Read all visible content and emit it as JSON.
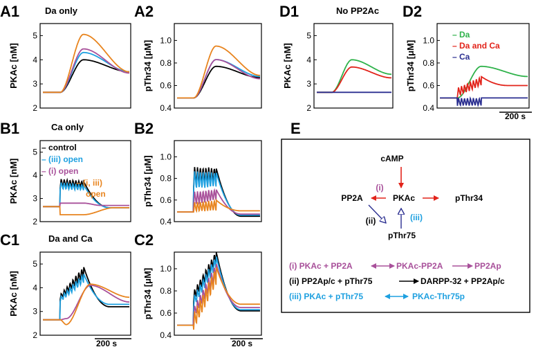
{
  "colors": {
    "black": "#000000",
    "blue": "#1ea0e0",
    "purple": "#a8509a",
    "orange": "#e8841e",
    "green": "#2eb24a",
    "red": "#e2231a",
    "navy": "#2a2e90"
  },
  "chart_data": [
    {
      "panel": "A1",
      "type": "line",
      "title": "Da only",
      "ylabel": "PKAc [nM]",
      "yticks": [
        "2",
        "3",
        "4",
        "5"
      ],
      "ylim": [
        2,
        5.5
      ],
      "series": [
        {
          "name": "control",
          "color": "#000000",
          "profile": "rise",
          "base": 2.65,
          "peak": 4.0,
          "end": 3.5
        },
        {
          "name": "(iii) open",
          "color": "#1ea0e0",
          "profile": "rise",
          "base": 2.65,
          "peak": 4.3,
          "end": 3.5
        },
        {
          "name": "(i) open",
          "color": "#a8509a",
          "profile": "rise",
          "base": 2.65,
          "peak": 4.45,
          "end": 3.45
        },
        {
          "name": "(i, iii) open",
          "color": "#e8841e",
          "profile": "rise",
          "base": 2.65,
          "peak": 5.05,
          "end": 3.5
        }
      ]
    },
    {
      "panel": "A2",
      "type": "line",
      "title": "",
      "ylabel": "pThr34 [μM]",
      "yticks": [
        "0.4",
        "0.6",
        "0.8",
        "1.0"
      ],
      "ylim": [
        0.4,
        1.15
      ],
      "series": [
        {
          "name": "control",
          "color": "#000000",
          "profile": "rise",
          "base": 0.49,
          "peak": 0.77,
          "end": 0.67
        },
        {
          "name": "(iii) open",
          "color": "#1ea0e0",
          "profile": "rise",
          "base": 0.49,
          "peak": 0.83,
          "end": 0.68
        },
        {
          "name": "(i) open",
          "color": "#a8509a",
          "profile": "rise",
          "base": 0.49,
          "peak": 0.83,
          "end": 0.66
        },
        {
          "name": "(i, iii) open",
          "color": "#e8841e",
          "profile": "rise",
          "base": 0.49,
          "peak": 0.95,
          "end": 0.69
        }
      ]
    },
    {
      "panel": "B1",
      "type": "line",
      "title": "Ca only",
      "ylabel": "PKAc [nM]",
      "yticks": [
        "2",
        "3",
        "4",
        "5"
      ],
      "ylim": [
        2,
        5.5
      ],
      "legend": [
        "control",
        "(iii) open",
        "(i) open",
        "(i, iii) open"
      ],
      "series": [
        {
          "name": "control",
          "color": "#000000",
          "profile": "osc",
          "base": 2.65,
          "low": 3.45,
          "high": 3.85,
          "endlow": 3.5,
          "endhigh": 3.75,
          "end": 2.6
        },
        {
          "name": "(iii) open",
          "color": "#1ea0e0",
          "profile": "osc",
          "base": 2.65,
          "low": 3.4,
          "high": 3.7,
          "endlow": 3.35,
          "endhigh": 3.6,
          "end": 2.6
        },
        {
          "name": "(i) open",
          "color": "#a8509a",
          "profile": "step",
          "base": 2.65,
          "level": 2.8,
          "end": 2.7
        },
        {
          "name": "(i, iii) open",
          "color": "#e8841e",
          "profile": "dip",
          "base": 2.65,
          "level": 2.3,
          "end": 2.6
        }
      ]
    },
    {
      "panel": "B2",
      "type": "line",
      "title": "",
      "ylabel": "pThr34 [μM]",
      "yticks": [
        "0.4",
        "0.6",
        "0.8",
        "1.0"
      ],
      "ylim": [
        0.4,
        1.15
      ],
      "series": [
        {
          "name": "control",
          "color": "#000000",
          "profile": "osc",
          "base": 0.49,
          "low": 0.72,
          "high": 0.91,
          "endlow": 0.76,
          "endhigh": 0.9,
          "end": 0.45
        },
        {
          "name": "(iii) open",
          "color": "#1ea0e0",
          "profile": "osc",
          "base": 0.49,
          "low": 0.7,
          "high": 0.87,
          "endlow": 0.72,
          "endhigh": 0.86,
          "end": 0.46
        },
        {
          "name": "(i) open",
          "color": "#a8509a",
          "profile": "osc",
          "base": 0.49,
          "low": 0.55,
          "high": 0.68,
          "endlow": 0.6,
          "endhigh": 0.7,
          "end": 0.47
        },
        {
          "name": "(i, iii) open",
          "color": "#e8841e",
          "profile": "osc",
          "base": 0.49,
          "low": 0.49,
          "high": 0.58,
          "endlow": 0.5,
          "endhigh": 0.6,
          "end": 0.5
        }
      ]
    },
    {
      "panel": "C1",
      "type": "line",
      "title": "Da and Ca",
      "ylabel": "PKAc [nM]",
      "yticks": [
        "2",
        "3",
        "4",
        "5"
      ],
      "ylim": [
        2,
        5.5
      ],
      "series": [
        {
          "name": "control",
          "color": "#000000",
          "profile": "oscrise",
          "base": 2.65,
          "low": 3.5,
          "high": 3.7,
          "endlow": 4.4,
          "endhigh": 4.9,
          "end": 3.2
        },
        {
          "name": "(iii) open",
          "color": "#1ea0e0",
          "profile": "oscrise",
          "base": 2.65,
          "low": 3.4,
          "high": 3.6,
          "endlow": 4.2,
          "endhigh": 4.6,
          "end": 3.3
        },
        {
          "name": "(i) open",
          "color": "#a8509a",
          "profile": "smooth",
          "base": 2.65,
          "peak": 4.1,
          "end": 3.4,
          "dip": 2.7
        },
        {
          "name": "(i, iii) open",
          "color": "#e8841e",
          "profile": "smooth",
          "base": 2.65,
          "peak": 4.15,
          "end": 3.6,
          "dip": 2.45
        }
      ]
    },
    {
      "panel": "C2",
      "type": "line",
      "title": "",
      "ylabel": "pThr34 [μM]",
      "yticks": [
        "0.4",
        "0.6",
        "0.8",
        "1.0"
      ],
      "ylim": [
        0.4,
        1.15
      ],
      "series": [
        {
          "name": "control",
          "color": "#000000",
          "profile": "oscrise",
          "base": 0.49,
          "low": 0.7,
          "high": 0.8,
          "endlow": 1.05,
          "endhigh": 1.16,
          "end": 0.62
        },
        {
          "name": "(iii) open",
          "color": "#1ea0e0",
          "profile": "oscrise",
          "base": 0.49,
          "low": 0.65,
          "high": 0.75,
          "endlow": 1.0,
          "endhigh": 1.12,
          "end": 0.63
        },
        {
          "name": "(i) open",
          "color": "#a8509a",
          "profile": "oscrise",
          "base": 0.49,
          "low": 0.55,
          "high": 0.65,
          "endlow": 0.9,
          "endhigh": 1.05,
          "end": 0.65
        },
        {
          "name": "(i, iii) open",
          "color": "#e8841e",
          "profile": "oscrise",
          "base": 0.49,
          "low": 0.45,
          "high": 0.6,
          "endlow": 0.85,
          "endhigh": 1.02,
          "end": 0.68
        }
      ]
    },
    {
      "panel": "D1",
      "type": "line",
      "title": "No PP2Ac",
      "ylabel": "PKAc [nM]",
      "yticks": [
        "2",
        "3",
        "4",
        "5"
      ],
      "ylim": [
        2,
        5.5
      ],
      "series": [
        {
          "name": "Da",
          "color": "#2eb24a",
          "profile": "rise",
          "base": 2.65,
          "peak": 4.0,
          "end": 3.4
        },
        {
          "name": "Da and Ca",
          "color": "#e2231a",
          "profile": "rise",
          "base": 2.65,
          "peak": 3.7,
          "end": 3.25
        },
        {
          "name": "Ca",
          "color": "#2a2e90",
          "profile": "flat",
          "base": 2.65,
          "end": 2.65
        }
      ]
    },
    {
      "panel": "D2",
      "type": "line",
      "title": "",
      "ylabel": "pThr34 [μM]",
      "yticks": [
        "0.4",
        "0.6",
        "0.8",
        "1.0"
      ],
      "ylim": [
        0.4,
        1.15
      ],
      "legend": [
        "Da",
        "Da and Ca",
        "Ca"
      ],
      "series": [
        {
          "name": "Da",
          "color": "#2eb24a",
          "profile": "rise",
          "base": 0.49,
          "peak": 0.77,
          "end": 0.68
        },
        {
          "name": "Da and Ca",
          "color": "#e2231a",
          "profile": "oscrise",
          "base": 0.49,
          "low": 0.5,
          "high": 0.58,
          "endlow": 0.6,
          "endhigh": 0.68,
          "end": 0.6
        },
        {
          "name": "Ca",
          "color": "#2a2e90",
          "profile": "osc",
          "base": 0.49,
          "low": 0.42,
          "high": 0.49,
          "endlow": 0.42,
          "endhigh": 0.49,
          "end": 0.49
        }
      ]
    }
  ],
  "panel_labels": {
    "A1": "A1",
    "A2": "A2",
    "B1": "B1",
    "B2": "B2",
    "C1": "C1",
    "C2": "C2",
    "D1": "D1",
    "D2": "D2",
    "E": "E"
  },
  "titles": {
    "a1": "Da only",
    "b1": "Ca only",
    "c1": "Da and Ca",
    "d1": "No PP2Ac"
  },
  "scalebar": "200 s",
  "legend_b1": [
    "control",
    "(iii) open",
    "(i) open",
    "(i, iii)",
    "open"
  ],
  "legend_d2": [
    "Da",
    "Da and Ca",
    "Ca"
  ],
  "diagram": {
    "nodes": {
      "camp": "cAMP",
      "pka": "PKAc",
      "pp2a": "PP2A",
      "pthr34": "pThr34",
      "pthr75": "pThr75"
    },
    "edge_labels": {
      "i": "(i)",
      "ii": "(ii)",
      "iii": "(iii)"
    },
    "reactions": [
      {
        "parts": [
          "(i) PKAc + PP2A",
          "PKAc-PP2A",
          "PP2Ap"
        ],
        "color": "#a8509a"
      },
      {
        "parts": [
          "(ii) PP2Ap/c + pThr75",
          "DARPP-32 + PP2Ap/c"
        ],
        "color": "#000000"
      },
      {
        "parts": [
          "(iii) PKAc + pThr75",
          "PKAc-Thr75p"
        ],
        "color": "#1ea0e0"
      }
    ]
  }
}
